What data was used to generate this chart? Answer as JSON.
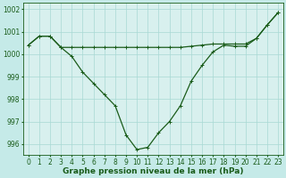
{
  "xlabel": "Graphe pression niveau de la mer (hPa)",
  "background_color": "#c5eae8",
  "plot_bg_color": "#d8f0ee",
  "grid_color": "#a8d8d4",
  "line_color": "#1a5c1a",
  "line1_y": [
    1000.4,
    1000.8,
    1000.8,
    1000.3,
    1000.3,
    1000.3,
    1000.3,
    1000.3,
    1000.3,
    1000.3,
    1000.3,
    1000.3,
    1000.3,
    1000.3,
    1000.3,
    1000.35,
    1000.4,
    1000.45,
    1000.45,
    1000.45,
    1000.45,
    1000.7,
    1001.3,
    1001.85
  ],
  "line2_y": [
    1000.4,
    1000.8,
    1000.8,
    1000.3,
    999.9,
    999.2,
    998.7,
    998.2,
    997.7,
    996.4,
    995.75,
    995.85,
    996.5,
    997.0,
    997.7,
    998.8,
    999.5,
    1000.1,
    1000.4,
    1000.35,
    1000.35,
    1000.7,
    1001.3,
    1001.85
  ],
  "ylim": [
    995.5,
    1002.3
  ],
  "xlim": [
    -0.5,
    23.5
  ],
  "yticks": [
    996,
    997,
    998,
    999,
    1000,
    1001,
    1002
  ],
  "xticks": [
    0,
    1,
    2,
    3,
    4,
    5,
    6,
    7,
    8,
    9,
    10,
    11,
    12,
    13,
    14,
    15,
    16,
    17,
    18,
    19,
    20,
    21,
    22,
    23
  ],
  "tick_fontsize": 5.5,
  "label_fontsize": 6.5,
  "marker_size": 2.5,
  "line_width": 0.9
}
